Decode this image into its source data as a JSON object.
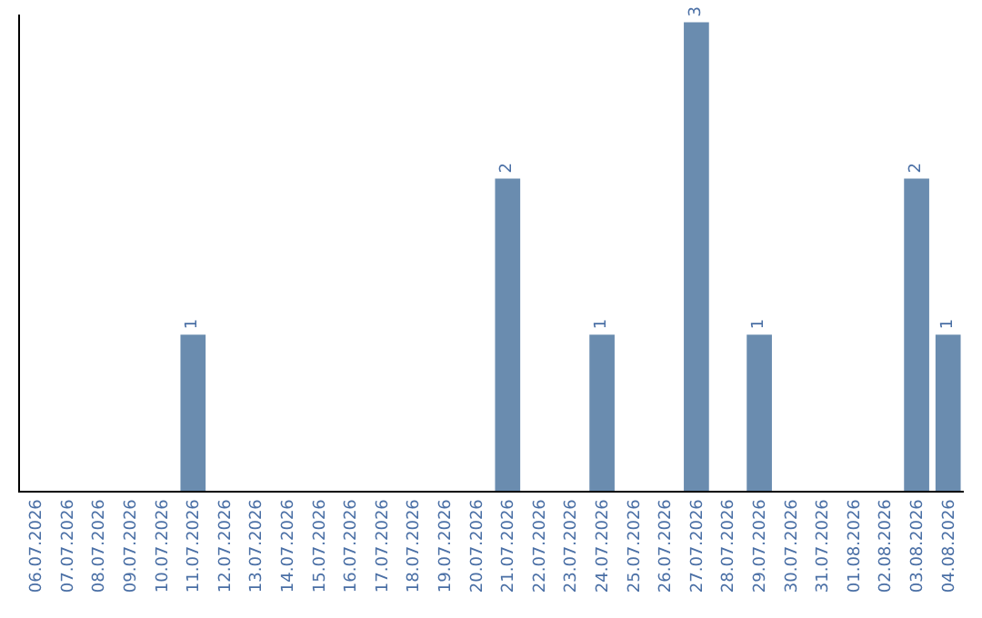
{
  "chart_data": {
    "type": "bar",
    "categories": [
      "06.07.2026",
      "07.07.2026",
      "08.07.2026",
      "09.07.2026",
      "10.07.2026",
      "11.07.2026",
      "12.07.2026",
      "13.07.2026",
      "14.07.2026",
      "15.07.2026",
      "16.07.2026",
      "17.07.2026",
      "18.07.2026",
      "19.07.2026",
      "20.07.2026",
      "21.07.2026",
      "22.07.2026",
      "23.07.2026",
      "24.07.2026",
      "25.07.2026",
      "26.07.2026",
      "27.07.2026",
      "28.07.2026",
      "29.07.2026",
      "30.07.2026",
      "31.07.2026",
      "01.08.2026",
      "02.08.2026",
      "03.08.2026",
      "04.08.2026"
    ],
    "values": [
      0,
      0,
      0,
      0,
      0,
      1,
      0,
      0,
      0,
      0,
      0,
      0,
      0,
      0,
      0,
      2,
      0,
      0,
      1,
      0,
      0,
      3,
      0,
      1,
      0,
      0,
      0,
      0,
      2,
      1
    ],
    "value_labels": [
      null,
      null,
      null,
      null,
      null,
      "1",
      null,
      null,
      null,
      null,
      null,
      null,
      null,
      null,
      null,
      "2",
      null,
      null,
      "1",
      null,
      null,
      "3",
      null,
      "1",
      null,
      null,
      null,
      null,
      "2",
      "1"
    ],
    "color": "#6a8caf",
    "ylim": [
      0,
      3.05
    ],
    "tick_labels": "x",
    "legend": false
  }
}
